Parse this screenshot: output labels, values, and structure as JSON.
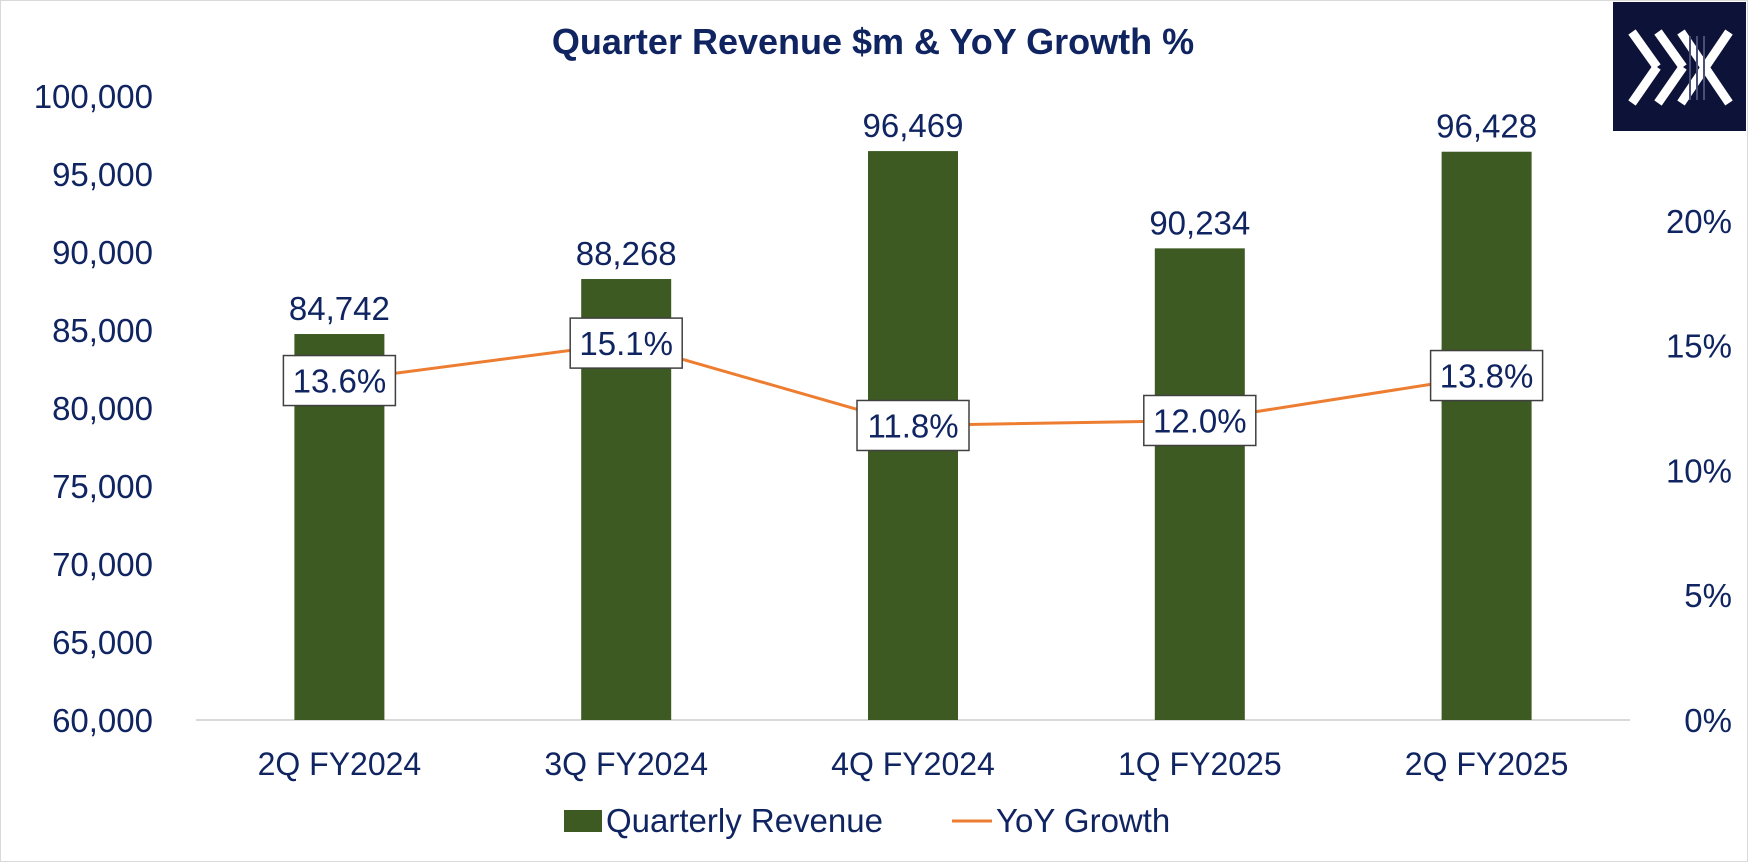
{
  "chart_data": {
    "type": "bar",
    "title": "Quarter Revenue $m & YoY Growth %",
    "categories": [
      "2Q FY2024",
      "3Q FY2024",
      "4Q FY2024",
      "1Q FY2025",
      "2Q FY2025"
    ],
    "series": [
      {
        "name": "Quarterly Revenue",
        "type": "bar",
        "axis": "left",
        "values": [
          84742,
          88268,
          96469,
          90234,
          96428
        ],
        "labels": [
          "84,742",
          "88,268",
          "96,469",
          "90,234",
          "96,428"
        ],
        "color": "#3c5a22"
      },
      {
        "name": "YoY Growth",
        "type": "line",
        "axis": "right",
        "values": [
          13.6,
          15.1,
          11.8,
          12.0,
          13.8
        ],
        "labels": [
          "13.6%",
          "15.1%",
          "11.8%",
          "12.0%",
          "13.8%"
        ],
        "color": "#ed7d31"
      }
    ],
    "left_axis": {
      "ylim": [
        60000,
        100000
      ],
      "ticks": [
        60000,
        65000,
        70000,
        75000,
        80000,
        85000,
        90000,
        95000,
        100000
      ],
      "tick_labels": [
        "60,000",
        "65,000",
        "70,000",
        "75,000",
        "80,000",
        "85,000",
        "90,000",
        "95,000",
        "100,000"
      ]
    },
    "right_axis": {
      "ylim": [
        0,
        25
      ],
      "ticks": [
        0,
        5,
        10,
        15,
        20
      ],
      "tick_labels": [
        "0%",
        "5%",
        "10%",
        "15%",
        "20%"
      ]
    },
    "grid": false,
    "legend": "bottom"
  },
  "logo": {
    "icon": "x-logo-icon",
    "background": "#0d1238",
    "text": "X"
  },
  "colors": {
    "text": "#0f2460",
    "bar": "#3c5a22",
    "line": "#ed7d31",
    "axis_line": "#d9d9d9"
  }
}
